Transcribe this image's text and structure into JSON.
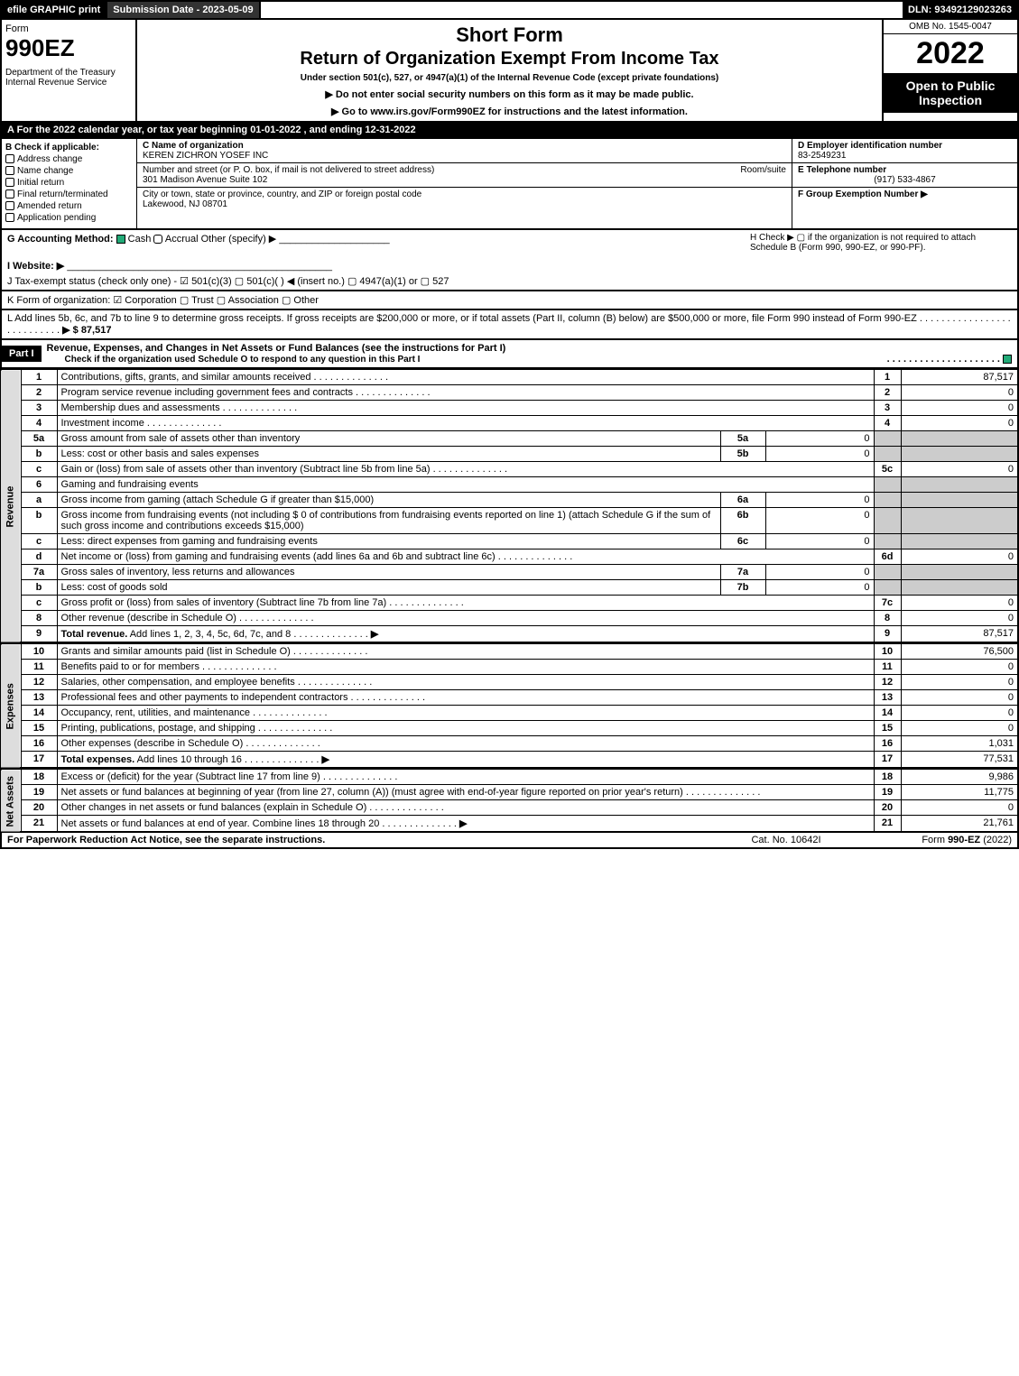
{
  "topbar": {
    "efile": "efile GRAPHIC print",
    "subdate": "Submission Date - 2023-05-09",
    "dln": "DLN: 93492129023263"
  },
  "header": {
    "form_label": "Form",
    "form_number": "990EZ",
    "dept": "Department of the Treasury\nInternal Revenue Service",
    "short_form": "Short Form",
    "title": "Return of Organization Exempt From Income Tax",
    "subtitle": "Under section 501(c), 527, or 4947(a)(1) of the Internal Revenue Code (except private foundations)",
    "instr1": "▶ Do not enter social security numbers on this form as it may be made public.",
    "instr2": "▶ Go to www.irs.gov/Form990EZ for instructions and the latest information.",
    "omb": "OMB No. 1545-0047",
    "year": "2022",
    "open": "Open to Public Inspection"
  },
  "line_a": "A  For the 2022 calendar year, or tax year beginning 01-01-2022 , and ending 12-31-2022",
  "col_b": {
    "title": "B  Check if applicable:",
    "items": [
      "Address change",
      "Name change",
      "Initial return",
      "Final return/terminated",
      "Amended return",
      "Application pending"
    ]
  },
  "col_c": {
    "name_label": "C Name of organization",
    "name": "KEREN ZICHRON YOSEF INC",
    "street_label": "Number and street (or P. O. box, if mail is not delivered to street address)",
    "room_label": "Room/suite",
    "street": "301 Madison Avenue Suite 102",
    "city_label": "City or town, state or province, country, and ZIP or foreign postal code",
    "city": "Lakewood, NJ  08701"
  },
  "col_def": {
    "d_label": "D Employer identification number",
    "d_val": "83-2549231",
    "e_label": "E Telephone number",
    "e_val": "(917) 533-4867",
    "f_label": "F Group Exemption Number  ▶"
  },
  "g": {
    "label": "G Accounting Method:",
    "cash": "Cash",
    "accrual": "Accrual",
    "other": "Other (specify) ▶"
  },
  "h": "H  Check ▶  ▢  if the organization is not required to attach Schedule B (Form 990, 990-EZ, or 990-PF).",
  "i": "I Website: ▶",
  "j": "J Tax-exempt status (check only one) - ☑ 501(c)(3) ▢ 501(c)(  ) ◀ (insert no.) ▢ 4947(a)(1) or ▢ 527",
  "k": "K Form of organization:  ☑ Corporation  ▢ Trust  ▢ Association  ▢ Other",
  "l": {
    "text": "L Add lines 5b, 6c, and 7b to line 9 to determine gross receipts. If gross receipts are $200,000 or more, or if total assets (Part II, column (B) below) are $500,000 or more, file Form 990 instead of Form 990-EZ",
    "amount": "▶ $ 87,517"
  },
  "part1": {
    "label": "Part I",
    "title": "Revenue, Expenses, and Changes in Net Assets or Fund Balances (see the instructions for Part I)",
    "check": "Check if the organization used Schedule O to respond to any question in this Part I"
  },
  "sections": {
    "revenue": "Revenue",
    "expenses": "Expenses",
    "netassets": "Net Assets"
  },
  "lines": [
    {
      "n": "1",
      "desc": "Contributions, gifts, grants, and similar amounts received",
      "rn": "1",
      "amt": "87,517"
    },
    {
      "n": "2",
      "desc": "Program service revenue including government fees and contracts",
      "rn": "2",
      "amt": "0"
    },
    {
      "n": "3",
      "desc": "Membership dues and assessments",
      "rn": "3",
      "amt": "0"
    },
    {
      "n": "4",
      "desc": "Investment income",
      "rn": "4",
      "amt": "0"
    },
    {
      "n": "5a",
      "desc": "Gross amount from sale of assets other than inventory",
      "sub": "5a",
      "subamt": "0"
    },
    {
      "n": "b",
      "desc": "Less: cost or other basis and sales expenses",
      "sub": "5b",
      "subamt": "0"
    },
    {
      "n": "c",
      "desc": "Gain or (loss) from sale of assets other than inventory (Subtract line 5b from line 5a)",
      "rn": "5c",
      "amt": "0"
    },
    {
      "n": "6",
      "desc": "Gaming and fundraising events"
    },
    {
      "n": "a",
      "desc": "Gross income from gaming (attach Schedule G if greater than $15,000)",
      "sub": "6a",
      "subamt": "0"
    },
    {
      "n": "b",
      "desc": "Gross income from fundraising events (not including $ 0            of contributions from fundraising events reported on line 1) (attach Schedule G if the sum of such gross income and contributions exceeds $15,000)",
      "sub": "6b",
      "subamt": "0"
    },
    {
      "n": "c",
      "desc": "Less: direct expenses from gaming and fundraising events",
      "sub": "6c",
      "subamt": "0"
    },
    {
      "n": "d",
      "desc": "Net income or (loss) from gaming and fundraising events (add lines 6a and 6b and subtract line 6c)",
      "rn": "6d",
      "amt": "0"
    },
    {
      "n": "7a",
      "desc": "Gross sales of inventory, less returns and allowances",
      "sub": "7a",
      "subamt": "0"
    },
    {
      "n": "b",
      "desc": "Less: cost of goods sold",
      "sub": "7b",
      "subamt": "0"
    },
    {
      "n": "c",
      "desc": "Gross profit or (loss) from sales of inventory (Subtract line 7b from line 7a)",
      "rn": "7c",
      "amt": "0"
    },
    {
      "n": "8",
      "desc": "Other revenue (describe in Schedule O)",
      "rn": "8",
      "amt": "0"
    },
    {
      "n": "9",
      "desc": "Total revenue. Add lines 1, 2, 3, 4, 5c, 6d, 7c, and 8",
      "rn": "9",
      "amt": "87,517",
      "bold": true,
      "arrow": true
    }
  ],
  "exp_lines": [
    {
      "n": "10",
      "desc": "Grants and similar amounts paid (list in Schedule O)",
      "rn": "10",
      "amt": "76,500"
    },
    {
      "n": "11",
      "desc": "Benefits paid to or for members",
      "rn": "11",
      "amt": "0"
    },
    {
      "n": "12",
      "desc": "Salaries, other compensation, and employee benefits",
      "rn": "12",
      "amt": "0"
    },
    {
      "n": "13",
      "desc": "Professional fees and other payments to independent contractors",
      "rn": "13",
      "amt": "0"
    },
    {
      "n": "14",
      "desc": "Occupancy, rent, utilities, and maintenance",
      "rn": "14",
      "amt": "0"
    },
    {
      "n": "15",
      "desc": "Printing, publications, postage, and shipping",
      "rn": "15",
      "amt": "0"
    },
    {
      "n": "16",
      "desc": "Other expenses (describe in Schedule O)",
      "rn": "16",
      "amt": "1,031"
    },
    {
      "n": "17",
      "desc": "Total expenses. Add lines 10 through 16",
      "rn": "17",
      "amt": "77,531",
      "bold": true,
      "arrow": true
    }
  ],
  "na_lines": [
    {
      "n": "18",
      "desc": "Excess or (deficit) for the year (Subtract line 17 from line 9)",
      "rn": "18",
      "amt": "9,986"
    },
    {
      "n": "19",
      "desc": "Net assets or fund balances at beginning of year (from line 27, column (A)) (must agree with end-of-year figure reported on prior year's return)",
      "rn": "19",
      "amt": "11,775"
    },
    {
      "n": "20",
      "desc": "Other changes in net assets or fund balances (explain in Schedule O)",
      "rn": "20",
      "amt": "0"
    },
    {
      "n": "21",
      "desc": "Net assets or fund balances at end of year. Combine lines 18 through 20",
      "rn": "21",
      "amt": "21,761",
      "arrow": true
    }
  ],
  "footer": {
    "left": "For Paperwork Reduction Act Notice, see the separate instructions.",
    "mid": "Cat. No. 10642I",
    "right": "Form 990-EZ (2022)"
  }
}
